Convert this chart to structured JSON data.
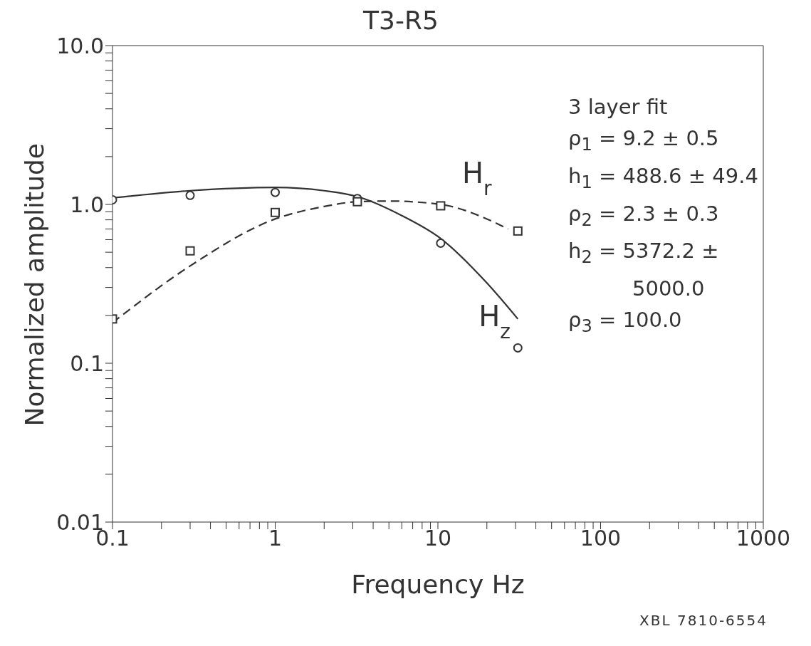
{
  "chart_data": {
    "type": "line",
    "title": "T3-R5",
    "xlabel": "Frequency Hz",
    "ylabel": "Normalized amplitude",
    "log": "xy",
    "grid": false,
    "legend": false,
    "xlim": [
      0.1,
      1000
    ],
    "ylim": [
      0.01,
      10
    ],
    "xticks": [
      {
        "value": 0.1,
        "label": "0.1"
      },
      {
        "value": 0.2,
        "label": null
      },
      {
        "value": 0.3,
        "label": null
      },
      {
        "value": 0.4,
        "label": null
      },
      {
        "value": 0.5,
        "label": null
      },
      {
        "value": 0.6,
        "label": null
      },
      {
        "value": 0.7,
        "label": null
      },
      {
        "value": 0.8,
        "label": null
      },
      {
        "value": 0.9,
        "label": null
      },
      {
        "value": 1,
        "label": "1"
      },
      {
        "value": 2,
        "label": null
      },
      {
        "value": 3,
        "label": null
      },
      {
        "value": 4,
        "label": null
      },
      {
        "value": 5,
        "label": null
      },
      {
        "value": 6,
        "label": null
      },
      {
        "value": 7,
        "label": null
      },
      {
        "value": 8,
        "label": null
      },
      {
        "value": 9,
        "label": null
      },
      {
        "value": 10,
        "label": "10"
      },
      {
        "value": 20,
        "label": null
      },
      {
        "value": 30,
        "label": null
      },
      {
        "value": 40,
        "label": null
      },
      {
        "value": 50,
        "label": null
      },
      {
        "value": 60,
        "label": null
      },
      {
        "value": 70,
        "label": null
      },
      {
        "value": 80,
        "label": null
      },
      {
        "value": 90,
        "label": null
      },
      {
        "value": 100,
        "label": "100"
      },
      {
        "value": 200,
        "label": null
      },
      {
        "value": 300,
        "label": null
      },
      {
        "value": 400,
        "label": null
      },
      {
        "value": 500,
        "label": null
      },
      {
        "value": 600,
        "label": null
      },
      {
        "value": 700,
        "label": null
      },
      {
        "value": 800,
        "label": null
      },
      {
        "value": 900,
        "label": null
      },
      {
        "value": 1000,
        "label": "1000"
      }
    ],
    "yticks": [
      {
        "value": 0.01,
        "label": "0.01"
      },
      {
        "value": 0.02,
        "label": null
      },
      {
        "value": 0.03,
        "label": null
      },
      {
        "value": 0.04,
        "label": null
      },
      {
        "value": 0.05,
        "label": null
      },
      {
        "value": 0.06,
        "label": null
      },
      {
        "value": 0.07,
        "label": null
      },
      {
        "value": 0.08,
        "label": null
      },
      {
        "value": 0.09,
        "label": null
      },
      {
        "value": 0.1,
        "label": "0.1"
      },
      {
        "value": 0.2,
        "label": null
      },
      {
        "value": 0.3,
        "label": null
      },
      {
        "value": 0.4,
        "label": null
      },
      {
        "value": 0.5,
        "label": null
      },
      {
        "value": 0.6,
        "label": null
      },
      {
        "value": 0.7,
        "label": null
      },
      {
        "value": 0.8,
        "label": null
      },
      {
        "value": 0.9,
        "label": null
      },
      {
        "value": 1,
        "label": "1.0"
      },
      {
        "value": 2,
        "label": null
      },
      {
        "value": 3,
        "label": null
      },
      {
        "value": 4,
        "label": null
      },
      {
        "value": 5,
        "label": null
      },
      {
        "value": 6,
        "label": null
      },
      {
        "value": 7,
        "label": null
      },
      {
        "value": 8,
        "label": null
      },
      {
        "value": 9,
        "label": null
      },
      {
        "value": 10,
        "label": "10.0"
      }
    ],
    "series": [
      {
        "name": "H$_{z}$",
        "line_style": "solid",
        "marker": "none",
        "color": "#333333",
        "x": [
          0.1,
          0.3,
          1,
          2,
          3.2,
          6,
          10.4,
          20,
          31
        ],
        "values": [
          1.1,
          1.22,
          1.28,
          1.22,
          1.12,
          0.85,
          0.61,
          0.32,
          0.19
        ]
      },
      {
        "name": "H$_{r}$",
        "line_style": "dashed",
        "marker": "none",
        "color": "#333333",
        "x": [
          0.1,
          0.3,
          1,
          2,
          3.2,
          5,
          10.4,
          20,
          27
        ],
        "values": [
          0.18,
          0.41,
          0.81,
          0.97,
          1.04,
          1.05,
          1.0,
          0.81,
          0.7
        ]
      },
      {
        "type": "scatter",
        "marker": "circle",
        "color": "#333333",
        "x": [
          0.1,
          0.3,
          1,
          3.2,
          10.4,
          31
        ],
        "values": [
          1.07,
          1.14,
          1.19,
          1.09,
          0.57,
          0.125
        ]
      },
      {
        "type": "scatter",
        "marker": "square",
        "color": "#333333",
        "x": [
          0.1,
          0.3,
          1,
          3.2,
          10.4,
          31
        ],
        "values": [
          0.19,
          0.51,
          0.89,
          1.04,
          0.98,
          0.68
        ]
      }
    ],
    "annotations": [
      "3 layer fit",
      "ρ$_{1}$ = 9.2 ± 0.5",
      "h$_{1}$ = 488.6 ± 49.4",
      "ρ$_{2}$ = 2.3 ± 0.3",
      "h$_{2}$ = 5372.2 ±",
      "5000.0",
      "ρ$_{3}$ = 100.0",
      "XBL 7810-6554"
    ]
  }
}
